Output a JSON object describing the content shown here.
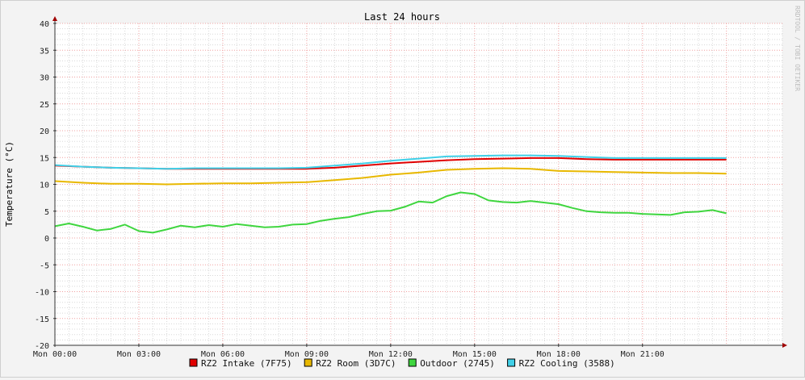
{
  "chart_data": {
    "type": "line",
    "title": "Last 24 hours",
    "ylabel": "Temperature (°C)",
    "xlabel": "",
    "watermark": "RRDTOOL / TOBI OETIKER",
    "ylim": [
      -20,
      40
    ],
    "y_ticks": [
      "40",
      "35",
      "30",
      "25",
      "20",
      "15",
      "10",
      "5",
      "0",
      "-5",
      "-10",
      "-15",
      "-20"
    ],
    "x_range_hours": [
      0,
      26
    ],
    "x_ticks": [
      {
        "label": "Mon 00:00",
        "hour": 0
      },
      {
        "label": "Mon 03:00",
        "hour": 3
      },
      {
        "label": "Mon 06:00",
        "hour": 6
      },
      {
        "label": "Mon 09:00",
        "hour": 9
      },
      {
        "label": "Mon 12:00",
        "hour": 12
      },
      {
        "label": "Mon 15:00",
        "hour": 15
      },
      {
        "label": "Mon 18:00",
        "hour": 18
      },
      {
        "label": "Mon 21:00",
        "hour": 21
      }
    ],
    "grid": true,
    "legend_position": "bottom",
    "series": [
      {
        "name": "RZ2 Intake (7F75)",
        "color": "#e00000",
        "x": [
          0,
          1,
          2,
          3,
          4,
          5,
          6,
          7,
          8,
          9,
          10,
          11,
          12,
          13,
          14,
          15,
          16,
          17,
          18,
          19,
          20,
          21,
          22,
          23,
          24
        ],
        "y": [
          13.5,
          13.3,
          13.1,
          13.0,
          12.9,
          12.9,
          12.9,
          12.9,
          12.9,
          12.9,
          13.1,
          13.5,
          13.9,
          14.2,
          14.5,
          14.7,
          14.8,
          14.9,
          14.9,
          14.7,
          14.6,
          14.6,
          14.6,
          14.6,
          14.6
        ]
      },
      {
        "name": "RZ2 Room (3D7C)",
        "color": "#e8b800",
        "x": [
          0,
          1,
          2,
          3,
          4,
          5,
          6,
          7,
          8,
          9,
          10,
          11,
          12,
          13,
          14,
          15,
          16,
          17,
          18,
          19,
          20,
          21,
          22,
          23,
          24
        ],
        "y": [
          10.6,
          10.3,
          10.1,
          10.1,
          10.0,
          10.1,
          10.2,
          10.2,
          10.3,
          10.4,
          10.8,
          11.2,
          11.8,
          12.2,
          12.7,
          12.9,
          13.0,
          12.9,
          12.5,
          12.4,
          12.3,
          12.2,
          12.1,
          12.1,
          12.0
        ]
      },
      {
        "name": "Outdoor (2745)",
        "color": "#3fd63f",
        "x": [
          0,
          0.5,
          1,
          1.5,
          2,
          2.5,
          3,
          3.5,
          4,
          4.5,
          5,
          5.5,
          6,
          6.5,
          7,
          7.5,
          8,
          8.5,
          9,
          9.5,
          10,
          10.5,
          11,
          11.5,
          12,
          12.5,
          13,
          13.5,
          14,
          14.5,
          15,
          15.5,
          16,
          16.5,
          17,
          17.5,
          18,
          18.5,
          19,
          19.5,
          20,
          20.5,
          21,
          21.5,
          22,
          22.5,
          23,
          23.5,
          24
        ],
        "y": [
          2.2,
          2.7,
          2.1,
          1.4,
          1.7,
          2.5,
          1.3,
          1.0,
          1.6,
          2.3,
          2.0,
          2.4,
          2.1,
          2.6,
          2.3,
          2.0,
          2.1,
          2.5,
          2.6,
          3.2,
          3.6,
          3.9,
          4.5,
          5.0,
          5.1,
          5.8,
          6.8,
          6.6,
          7.8,
          8.5,
          8.2,
          7.0,
          6.7,
          6.6,
          6.9,
          6.6,
          6.3,
          5.6,
          5.0,
          4.8,
          4.7,
          4.7,
          4.5,
          4.4,
          4.3,
          4.8,
          4.9,
          5.2,
          4.6
        ]
      },
      {
        "name": "RZ2 Cooling (3588)",
        "color": "#40d0e8",
        "x": [
          0,
          1,
          2,
          3,
          4,
          5,
          6,
          7,
          8,
          9,
          10,
          11,
          12,
          13,
          14,
          15,
          16,
          17,
          18,
          19,
          20,
          21,
          22,
          23,
          24
        ],
        "y": [
          13.6,
          13.3,
          13.1,
          13.0,
          12.9,
          13.0,
          13.0,
          13.0,
          13.0,
          13.1,
          13.5,
          13.9,
          14.4,
          14.8,
          15.2,
          15.3,
          15.4,
          15.4,
          15.3,
          15.1,
          14.9,
          14.9,
          14.9,
          14.9,
          14.9
        ]
      }
    ]
  }
}
